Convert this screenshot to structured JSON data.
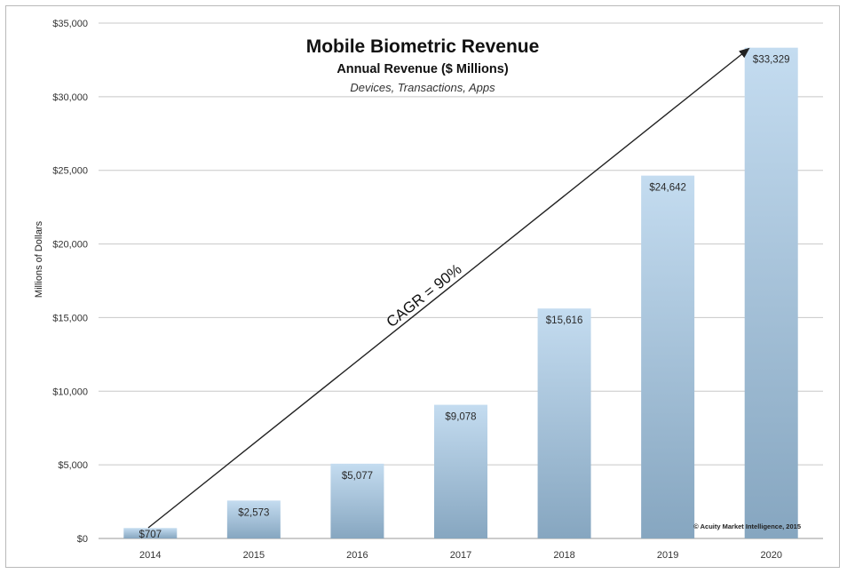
{
  "chart_data": {
    "type": "bar",
    "title": "Mobile Biometric Revenue",
    "subtitle": "Annual Revenue ($ Millions)",
    "subtitle2": "Devices, Transactions, Apps",
    "xlabel": "",
    "ylabel": "Millions of Dollars",
    "categories": [
      "2014",
      "2015",
      "2016",
      "2017",
      "2018",
      "2019",
      "2020"
    ],
    "values": [
      707,
      2573,
      5077,
      9078,
      15616,
      24642,
      33329
    ],
    "value_labels": [
      "$707",
      "$2,573",
      "$5,077",
      "$9,078",
      "$15,616",
      "$24,642",
      "$33,329"
    ],
    "ylim": [
      0,
      35000
    ],
    "yticks": [
      0,
      5000,
      10000,
      15000,
      20000,
      25000,
      30000,
      35000
    ],
    "ytick_labels": [
      "$0",
      "$5,000",
      "$10,000",
      "$15,000",
      "$20,000",
      "$25,000",
      "$30,000",
      "$35,000"
    ],
    "grid": true,
    "annotation": "CAGR = 90%",
    "copyright": "© Acuity Market Intelligence, 2015",
    "colors": {
      "bar_top": "#c4dcf0",
      "bar_bottom": "#86a6c0",
      "grid": "#c8c8c8",
      "arrow": "#222222"
    }
  }
}
